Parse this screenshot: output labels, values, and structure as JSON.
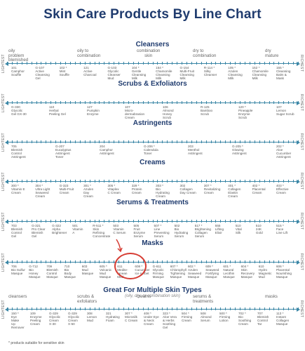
{
  "title": "Skin Care Products By Line Chart",
  "side_left": "LIGHTEST",
  "side_right": "RICHEST",
  "footnote": "* products suitable for sensitive skin",
  "sections": [
    {
      "title": "Cleansers",
      "zones": [
        "oily\nproblem\nblemished",
        "oily to\ncombination",
        "combination\nskin",
        "dry to\ncombination",
        "dry\nmature"
      ],
      "products": [
        "101\nCamphor\nSouffle",
        "G-107\nActive\nCleansing\nGel",
        "102 *\nMint\nSouffle",
        "121\nActive\nCharcoal",
        "G-103\nGlycolic\nCleanser\nMud",
        "104 *\nGentle\nCleansing\nMilk",
        "154 *\nChamomile\nCleansing\nMilk",
        "G-154\nMulti-Fruit\nCleansing\nMilk",
        "R-114 *\nSilky\nCleanser",
        "105 *\nAzulen\nCleansing\nMilk",
        "152 *\nChamomile\nCleansing\nMilk",
        "155 *\nCleansing\nBalm &\nMask"
      ]
    },
    {
      "title": "Scrubs & Exfoliators",
      "zones": [],
      "products": [
        "G-330\nGlycolic\nGel GX-30",
        "110\nHerbal\nPeeling Gel",
        "127\nPumpkin\nEnzyme",
        "107\nMicro-\ndermabrasion\nCream",
        "106\nAlmond\nHoney\nScrub",
        "R-125\nBamboo\nScrub",
        "120 *\nPineapple\nEnzyme\nScrub",
        "107\nLemon\nSugar Scrub"
      ]
    },
    {
      "title": "Astringents",
      "zones": [],
      "products": [
        "705\nBlemish\nControl\nAstringent",
        "G-207\nEucalyptus\nAstringent\nToner",
        "204\nCamphor\nAstringent",
        "G-206 *\nCalendula\nToner",
        "203\nMenthol\nAstringent",
        "G-205 *\nGlowing\nAstringent",
        "202 *\nAloe\nCucumber\nAstringent"
      ]
    },
    {
      "title": "Creams",
      "zones": [],
      "products": [
        "300 *\nVitamin E\nCream",
        "304 *\nUltra Light\nSeaweed\nCream",
        "G-323\nMulti-Fruit\nCream",
        "301 *\nAzulen\nDay\nCream",
        "305 *\nVitaplex\nC Cream",
        "329 *\nProtein\nCream",
        "303 *\nBio\nHydrating\nCream",
        "302\nCollagen\nDay Cream",
        "307 *\nRevitalizing\nCream",
        "401 *\nCollagen\nElastin\nCream",
        "402 *\nPlacental\nCream",
        "403 *\nEffective\nCream"
      ]
    },
    {
      "title": "Serums & Treatments",
      "zones": [],
      "products": [
        "703\nBlemish\nControl\nGel",
        "G-321\nPro Clear\nBlemish\nGel",
        "G-322\nAlpha\nBrightener",
        "501\nVitamin\nA",
        "R-511 *\nSkin\nRefining\nConcentrate",
        "503\nVitamin\nC Serum",
        "505\nFruit\nEnzyme\nSerum",
        "507 *\nLine\nPreventing\nSerum",
        "502\nBio\nHydrating\nSerum",
        "517 *\nBrightening\nCollagen\nSerum",
        "555\nLifting\nElixir",
        "510\nVital\nSilk",
        "510\n24K\nGold",
        "515 *\nFace\nLine Lift"
      ]
    },
    {
      "title": "Masks",
      "zones": [],
      "products": [
        "706\nBio Sulfur\nMasque",
        "G-712\nBio\nHoney\nMasque",
        "709\nBlemish\nControl\nMasque",
        "710\nBio\nBody\nMasque",
        "603\nMud\nMasque",
        "605 *\nVolcanic\nMud\nMasque",
        "611\nMedite-\nranean\nMud",
        "608 *\nCucumber\nIce sorbet",
        "G-611\nGlycolic\nFirming\nMasque",
        "607 *\nChlorophyll\nTightening\nMasque",
        "602 *\nAzulen\nSeaweed\nMasque",
        "609 *\nSeaweed\nFortifying\nMasque",
        "601 *\nNatural\nLecithin\nMasque",
        "604 *\nSkin\nRecovery\nMasque",
        "610\nHydro\nMagnetic\nMud",
        "606 *\nPlacental\nNourishing\nMasque"
      ]
    },
    {
      "title": "Great For Multiple Skin Types",
      "subtitle": "(oily, dry, or combination skin)",
      "zones": [
        "cleansers",
        "scrubs &\nexfoliators",
        "creams",
        "serums &\ntreatments",
        "masks"
      ],
      "products": [
        "150 *\nEye\nMake\nUp\nRemover",
        "109\nEnzyme\nPeeling\nCream",
        "G-329\nGlycolic\nCream\nX-30",
        "G-329\nGlycolic\nCream\nX-50",
        "308\nLemon\nMud",
        "321\nHydrating\nFoam",
        "307 *\nMicrosilk\nC Cream",
        "408 *\nUnder Eye\n& Neck\nCream",
        "323 *\nAloe Vera\n& Herbs\nSoothing\nGel",
        "504 *\nFirming\nCream",
        "508\nAlmond\nSerum",
        "500 *\nFirming\nLotion",
        "702 *\nBio\nSoothing\nCream",
        "707\nBlemish\nControl\nTar",
        "113 *\nInstant\nCollagen\nMasque"
      ]
    }
  ]
}
